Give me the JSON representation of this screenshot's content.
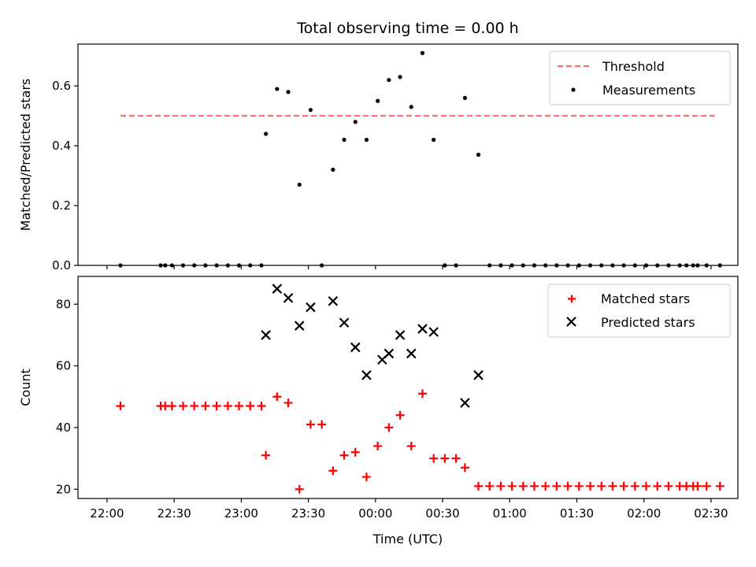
{
  "chart_data": [
    {
      "type": "scatter",
      "title": "Total observing time = 0.00 h",
      "ylabel": "Matched/Predicted stars",
      "ylim": [
        0,
        0.74
      ],
      "yticks": [
        0.0,
        0.2,
        0.4,
        0.6
      ],
      "ytick_labels": [
        "0.0",
        "0.2",
        "0.4",
        "0.6"
      ],
      "xlim": [
        -13,
        282
      ],
      "legend_position": "upper-right",
      "colors": {
        "threshold": "#ff6666",
        "measurements": "#000000"
      },
      "series": [
        {
          "name": "Threshold",
          "kind": "dashed-line",
          "x": [
            6,
            273
          ],
          "y": [
            0.5,
            0.5
          ]
        },
        {
          "name": "Measurements",
          "kind": "points",
          "x": [
            6,
            24,
            26,
            29,
            34,
            39,
            44,
            49,
            54,
            59,
            64,
            69,
            71,
            76,
            81,
            86,
            91,
            96,
            101,
            106,
            111,
            116,
            121,
            126,
            131,
            136,
            141,
            146,
            151,
            156,
            160,
            166,
            171,
            176,
            181,
            186,
            191,
            196,
            201,
            206,
            211,
            216,
            221,
            226,
            231,
            236,
            241,
            246,
            251,
            256,
            259,
            262,
            264,
            268,
            274
          ],
          "y": [
            0,
            0,
            0,
            0,
            0,
            0,
            0,
            0,
            0,
            0,
            0,
            0,
            0.44,
            0.59,
            0.58,
            0.27,
            0.52,
            0,
            0.32,
            0.42,
            0.48,
            0.42,
            0.55,
            0.62,
            0.63,
            0.53,
            0.71,
            0.42,
            0,
            0,
            0.56,
            0.37,
            0,
            0,
            0,
            0,
            0,
            0,
            0,
            0,
            0,
            0,
            0,
            0,
            0,
            0,
            0,
            0,
            0,
            0,
            0,
            0,
            0,
            0,
            0
          ]
        }
      ]
    },
    {
      "type": "scatter",
      "xlabel": "Time (UTC)",
      "ylabel": "Count",
      "ylim": [
        17,
        89
      ],
      "yticks": [
        20,
        40,
        60,
        80
      ],
      "ytick_labels": [
        "20",
        "40",
        "60",
        "80"
      ],
      "xlim": [
        -13,
        282
      ],
      "xticks": [
        0,
        30,
        60,
        90,
        120,
        150,
        180,
        210,
        240,
        270
      ],
      "xtick_labels": [
        "22:00",
        "22:30",
        "23:00",
        "23:30",
        "00:00",
        "00:30",
        "01:00",
        "01:30",
        "02:00",
        "02:30"
      ],
      "legend_position": "upper-right",
      "colors": {
        "matched": "#ff0000",
        "predicted": "#000000"
      },
      "series": [
        {
          "name": "Matched stars",
          "marker": "plus",
          "x": [
            6,
            24,
            26,
            29,
            34,
            39,
            44,
            49,
            54,
            59,
            64,
            69,
            71,
            76,
            81,
            86,
            91,
            96,
            101,
            106,
            111,
            116,
            121,
            126,
            131,
            136,
            141,
            146,
            151,
            156,
            160,
            166,
            171,
            176,
            181,
            186,
            191,
            196,
            201,
            206,
            211,
            216,
            221,
            226,
            231,
            236,
            241,
            246,
            251,
            256,
            259,
            262,
            264,
            268,
            274
          ],
          "y": [
            47,
            47,
            47,
            47,
            47,
            47,
            47,
            47,
            47,
            47,
            47,
            47,
            31,
            50,
            48,
            20,
            41,
            41,
            26,
            31,
            32,
            24,
            34,
            40,
            44,
            34,
            51,
            30,
            30,
            30,
            27,
            21,
            21,
            21,
            21,
            21,
            21,
            21,
            21,
            21,
            21,
            21,
            21,
            21,
            21,
            21,
            21,
            21,
            21,
            21,
            21,
            21,
            21,
            21,
            21
          ]
        },
        {
          "name": "Predicted stars",
          "marker": "x",
          "x": [
            71,
            76,
            81,
            86,
            91,
            101,
            106,
            111,
            116,
            123,
            126,
            131,
            136,
            141,
            146,
            160,
            166
          ],
          "y": [
            70,
            85,
            82,
            73,
            79,
            81,
            74,
            66,
            57,
            62,
            64,
            70,
            64,
            72,
            71,
            48,
            57
          ]
        }
      ]
    }
  ]
}
